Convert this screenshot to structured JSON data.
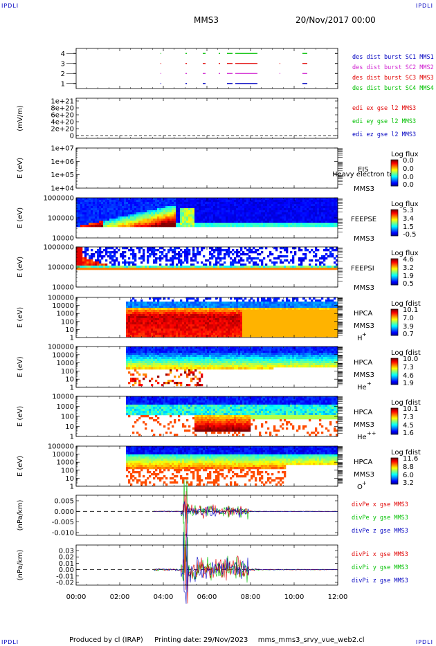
{
  "header": {
    "logo": "IPDLI",
    "spacecraft": "MMS3",
    "datetime": "20/Nov/2017 00:00"
  },
  "footer": {
    "produced_by": "Produced by cl (IRAP)",
    "printing_date": "Printing date: 29/Nov/2023",
    "filename": "mms_mms3_srvy_vue_web2.cl"
  },
  "colors": {
    "red": "#e00000",
    "magenta": "#d020d0",
    "blue": "#0000c0",
    "green": "#00c000",
    "darkred": "#cc0000"
  },
  "chart_data": [
    {
      "type": "line",
      "panel": "burst",
      "ylim": [
        0.5,
        4.5
      ],
      "yticks": [
        "1",
        "2",
        "3",
        "4"
      ],
      "series": [
        {
          "name": "des dist burst SC1 MMS1",
          "color": "#0000c0"
        },
        {
          "name": "des dist burst SC2 MMS2",
          "color": "#d020d0"
        },
        {
          "name": "des dist burst SC3 MMS3",
          "color": "#e00000"
        },
        {
          "name": "des dist burst SC4 MMS4",
          "color": "#00c000"
        }
      ]
    },
    {
      "type": "line",
      "panel": "edi",
      "ylabel": "(mV/m)",
      "yticks": [
        "1e+21",
        "8e+20",
        "6e+20",
        "4e+20",
        "2e+20",
        "0"
      ],
      "series": [
        {
          "name": "edi ex gse l2 MMS3",
          "color": "#e00000"
        },
        {
          "name": "edi ey gse l2 MMS3",
          "color": "#00c000"
        },
        {
          "name": "edi ez gse l2 MMS3",
          "color": "#0000c0"
        }
      ]
    },
    {
      "type": "heatmap",
      "panel": "eis",
      "ylabel": "E (eV)",
      "yticks": [
        "1e+07",
        "1e+06",
        "1e+05",
        "1e+04"
      ],
      "instrument": "EIS",
      "instrument_extra": "Heavy electron to",
      "spacecraft": "MMS3",
      "colorbar": {
        "title": "Log flux",
        "ticks": [
          "0.0",
          "0.0",
          "0.0",
          "0.0"
        ]
      }
    },
    {
      "type": "heatmap",
      "panel": "feepse",
      "ylabel": "E (eV)",
      "yticks": [
        "1000000",
        "100000",
        "10000"
      ],
      "instrument": "FEEPSE",
      "spacecraft": "MMS3",
      "colorbar": {
        "title": "Log flux",
        "ticks": [
          "5.3",
          "3.4",
          "1.5",
          "-0.5"
        ]
      }
    },
    {
      "type": "heatmap",
      "panel": "feepsi",
      "ylabel": "E (eV)",
      "yticks": [
        "1000000",
        "100000",
        "10000"
      ],
      "instrument": "FEEPSI",
      "spacecraft": "MMS3",
      "colorbar": {
        "title": "Log flux",
        "ticks": [
          "4.6",
          "3.2",
          "1.9",
          "0.5"
        ]
      }
    },
    {
      "type": "heatmap",
      "panel": "hpca-h",
      "ylabel": "E (eV)",
      "yticks": [
        "100000",
        "10000",
        "1000",
        "100",
        "10",
        "1"
      ],
      "instrument": "HPCA",
      "spacecraft": "MMS3",
      "species": "H",
      "charge": "+",
      "colorbar": {
        "title": "Log fdist",
        "ticks": [
          "10.1",
          "7.0",
          "3.9",
          "0.7"
        ]
      }
    },
    {
      "type": "heatmap",
      "panel": "hpca-he",
      "ylabel": "E (eV)",
      "yticks": [
        "100000",
        "10000",
        "1000",
        "100",
        "10",
        "1"
      ],
      "instrument": "HPCA",
      "spacecraft": "MMS3",
      "species": "He",
      "charge": "+",
      "colorbar": {
        "title": "Log fdist",
        "ticks": [
          "10.0",
          "7.3",
          "4.6",
          "1.9"
        ]
      }
    },
    {
      "type": "heatmap",
      "panel": "hpca-he2",
      "ylabel": "E (eV)",
      "yticks": [
        "10000",
        "1000",
        "100",
        "10",
        "1"
      ],
      "instrument": "HPCA",
      "spacecraft": "MMS3",
      "species": "He",
      "charge": "++",
      "colorbar": {
        "title": "Log fdist",
        "ticks": [
          "10.1",
          "7.3",
          "4.5",
          "1.6"
        ]
      }
    },
    {
      "type": "heatmap",
      "panel": "hpca-o",
      "ylabel": "E (eV)",
      "yticks": [
        "100000",
        "10000",
        "1000",
        "100",
        "10",
        "1"
      ],
      "instrument": "HPCA",
      "spacecraft": "MMS3",
      "species": "O",
      "charge": "+",
      "colorbar": {
        "title": "Log fdist",
        "ticks": [
          "11.6",
          "8.8",
          "6.0",
          "3.2"
        ]
      }
    },
    {
      "type": "line",
      "panel": "divpe",
      "ylabel": "(nPa/km)",
      "yticks": [
        "0.005",
        "0.000",
        "-0.005",
        "-0.010"
      ],
      "series": [
        {
          "name": "divPe x gse MMS3",
          "color": "#e00000"
        },
        {
          "name": "divPe y gse MMS3",
          "color": "#00c000"
        },
        {
          "name": "divPe z gse MMS3",
          "color": "#0000c0"
        }
      ]
    },
    {
      "type": "line",
      "panel": "divpi",
      "ylabel": "(nPa/km)",
      "yticks": [
        "0.03",
        "0.02",
        "0.01",
        "0.00",
        "-0.01",
        "-0.02"
      ],
      "series": [
        {
          "name": "divPi x gse MMS3",
          "color": "#e00000"
        },
        {
          "name": "divPi y gse MMS3",
          "color": "#00c000"
        },
        {
          "name": "divPi z gse MMS3",
          "color": "#0000c0"
        }
      ]
    }
  ],
  "xaxis": {
    "ticks": [
      "00:00",
      "02:00",
      "04:00",
      "06:00",
      "08:00",
      "10:00",
      "12:00"
    ]
  }
}
